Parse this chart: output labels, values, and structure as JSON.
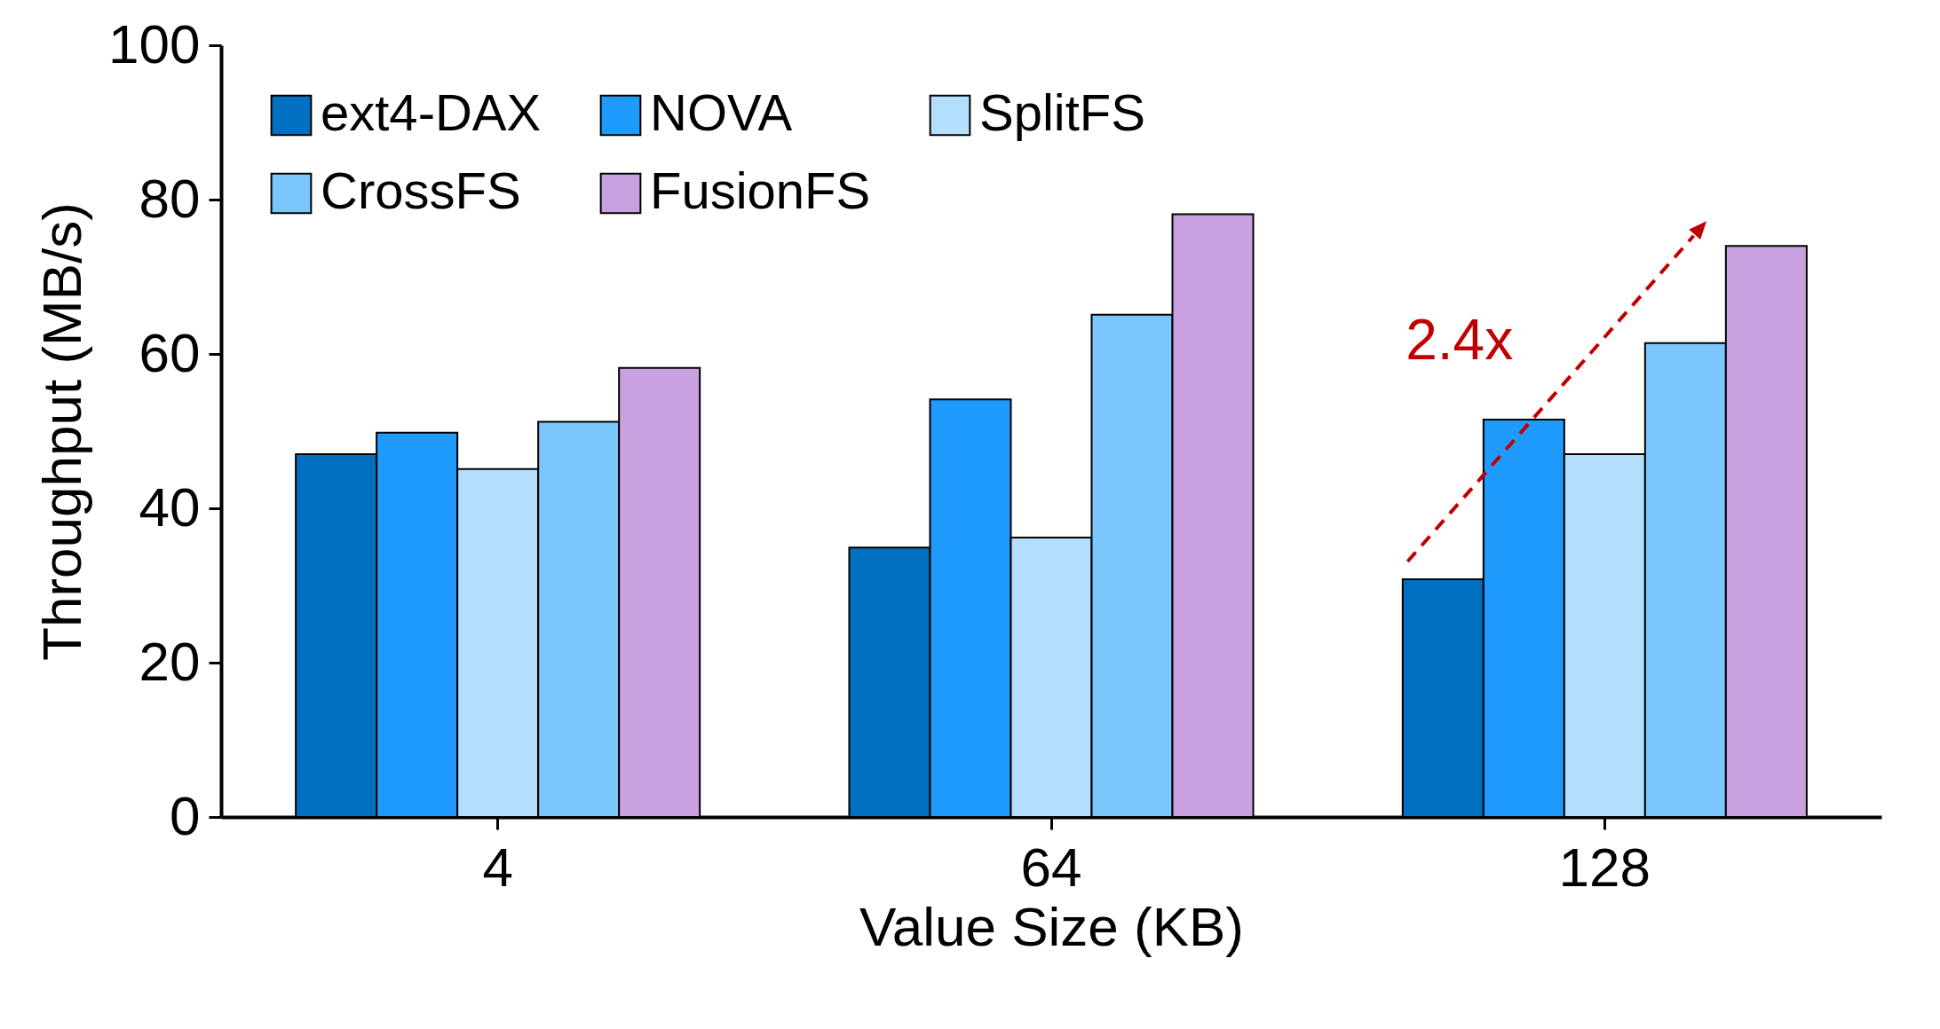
{
  "chart_data": {
    "type": "bar",
    "xlabel": "Value Size (KB)",
    "ylabel": "Throughput (MB/s)",
    "categories": [
      "4",
      "64",
      "128"
    ],
    "series": [
      {
        "name": "ext4-DAX",
        "color": "#0070c0",
        "values": [
          47.0,
          34.9,
          30.8
        ]
      },
      {
        "name": "NOVA",
        "color": "#1f9bfe",
        "values": [
          49.8,
          54.1,
          51.5
        ]
      },
      {
        "name": "SplitFS",
        "color": "#b4defe",
        "values": [
          45.1,
          36.2,
          47.0
        ]
      },
      {
        "name": "CrossFS",
        "color": "#7cc6fe",
        "values": [
          51.2,
          65.1,
          61.4
        ]
      },
      {
        "name": "FusionFS",
        "color": "#c9a0e0",
        "values": [
          58.2,
          78.1,
          74.0
        ]
      }
    ],
    "ylim": [
      0,
      100
    ],
    "yticks": [
      0,
      20,
      40,
      60,
      80,
      100
    ],
    "grid": false,
    "legend": "top left",
    "annotations": [
      "2.4x"
    ]
  }
}
